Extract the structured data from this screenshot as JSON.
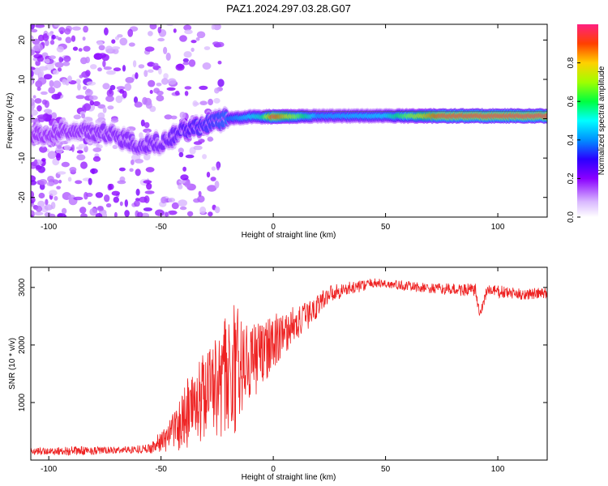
{
  "title": "PAZ1.2024.297.03.28.G07",
  "chart_data": [
    {
      "type": "heatmap",
      "title": "PAZ1.2024.297.03.28.G07",
      "xlabel": "Height of straight line (km)",
      "ylabel": "Frequency (Hz)",
      "xlim": [
        -108,
        122
      ],
      "ylim": [
        -25,
        24
      ],
      "xticks": [
        -100,
        -50,
        0,
        50,
        100
      ],
      "yticks": [
        -20,
        -10,
        0,
        10,
        20
      ],
      "xtick_labels": [
        "-100",
        "-50",
        "0",
        "50",
        "100"
      ],
      "ytick_labels": [
        "-20",
        "-10",
        "0",
        "10",
        "20"
      ],
      "ridge": [
        {
          "x": -108,
          "f": -4.5
        },
        {
          "x": -90,
          "f": -3.0
        },
        {
          "x": -75,
          "f": -3.5
        },
        {
          "x": -60,
          "f": -6.5
        },
        {
          "x": -50,
          "f": -6.0
        },
        {
          "x": -40,
          "f": -3.0
        },
        {
          "x": -30,
          "f": -1.5
        },
        {
          "x": -20,
          "f": 0.0
        },
        {
          "x": -10,
          "f": 0.5
        },
        {
          "x": 0,
          "f": 0.5
        },
        {
          "x": 20,
          "f": 0.7
        },
        {
          "x": 50,
          "f": 0.7
        },
        {
          "x": 90,
          "f": 0.7
        },
        {
          "x": 122,
          "f": 0.7
        }
      ],
      "ridge_amplitude": [
        {
          "x": -108,
          "a": 0.2
        },
        {
          "x": -50,
          "a": 0.25
        },
        {
          "x": -25,
          "a": 0.35
        },
        {
          "x": -5,
          "a": 0.55
        },
        {
          "x": 0,
          "a": 0.95
        },
        {
          "x": 20,
          "a": 0.45
        },
        {
          "x": 50,
          "a": 0.5
        },
        {
          "x": 75,
          "a": 0.95
        },
        {
          "x": 122,
          "a": 0.97
        }
      ],
      "colorbar": {
        "label": "Normalized spectral amplitude",
        "range": [
          0,
          1
        ],
        "ticks": [
          0.0,
          0.2,
          0.4,
          0.6,
          0.8
        ],
        "tick_labels": [
          "0.0",
          "0.2",
          "0.4",
          "0.6",
          "0.8"
        ]
      },
      "grid": false
    },
    {
      "type": "line",
      "xlabel": "Height of straight line (km)",
      "ylabel": "SNR (10 * v/v)",
      "xlim": [
        -108,
        122
      ],
      "ylim": [
        0,
        3350
      ],
      "xticks": [
        -100,
        -50,
        0,
        50,
        100
      ],
      "yticks": [
        1000,
        2000,
        3000
      ],
      "xtick_labels": [
        "-100",
        "-50",
        "0",
        "50",
        "100"
      ],
      "ytick_labels": [
        "1000",
        "2000",
        "3000"
      ],
      "series": [
        {
          "color": "#ee2222",
          "envelope": [
            {
              "x": -108,
              "y": 150,
              "noise": 60
            },
            {
              "x": -90,
              "y": 160,
              "noise": 80
            },
            {
              "x": -70,
              "y": 170,
              "noise": 60
            },
            {
              "x": -55,
              "y": 200,
              "noise": 80
            },
            {
              "x": -45,
              "y": 450,
              "noise": 300
            },
            {
              "x": -35,
              "y": 900,
              "noise": 700
            },
            {
              "x": -25,
              "y": 1300,
              "noise": 900
            },
            {
              "x": -18,
              "y": 1500,
              "noise": 1100
            },
            {
              "x": -10,
              "y": 1600,
              "noise": 700
            },
            {
              "x": -3,
              "y": 1900,
              "noise": 500
            },
            {
              "x": 5,
              "y": 2200,
              "noise": 350
            },
            {
              "x": 15,
              "y": 2500,
              "noise": 250
            },
            {
              "x": 25,
              "y": 2900,
              "noise": 150
            },
            {
              "x": 45,
              "y": 3080,
              "noise": 80
            },
            {
              "x": 70,
              "y": 2980,
              "noise": 90
            },
            {
              "x": 90,
              "y": 2950,
              "noise": 120
            },
            {
              "x": 92,
              "y": 2500,
              "noise": 80
            },
            {
              "x": 95,
              "y": 2950,
              "noise": 120
            },
            {
              "x": 110,
              "y": 2880,
              "noise": 100
            },
            {
              "x": 122,
              "y": 2900,
              "noise": 100
            }
          ]
        }
      ],
      "grid": false
    }
  ]
}
